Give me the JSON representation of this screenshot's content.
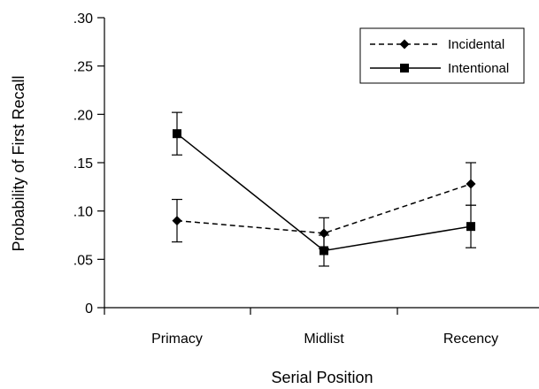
{
  "chart_data": {
    "type": "line",
    "categories": [
      "Primacy",
      "Midlist",
      "Recency"
    ],
    "series": [
      {
        "name": "Incidental",
        "values": [
          0.09,
          0.077,
          0.128
        ],
        "errors": [
          0.022,
          0.016,
          0.022
        ],
        "line_style": "dashed",
        "marker": "diamond",
        "color": "#000000"
      },
      {
        "name": "Intentional",
        "values": [
          0.18,
          0.059,
          0.084
        ],
        "errors": [
          0.022,
          0.016,
          0.022
        ],
        "line_style": "solid",
        "marker": "square",
        "color": "#000000"
      }
    ],
    "xlabel": "Serial Position",
    "ylabel": "Probability of First Recall",
    "ylim": [
      0,
      0.3
    ],
    "yticks": [
      0,
      0.05,
      0.1,
      0.15,
      0.2,
      0.25,
      0.3
    ],
    "ytick_labels": [
      "0",
      ".05",
      ".10",
      ".15",
      ".20",
      ".25",
      ".30"
    ],
    "grid": false,
    "legend_position": "top-right"
  }
}
